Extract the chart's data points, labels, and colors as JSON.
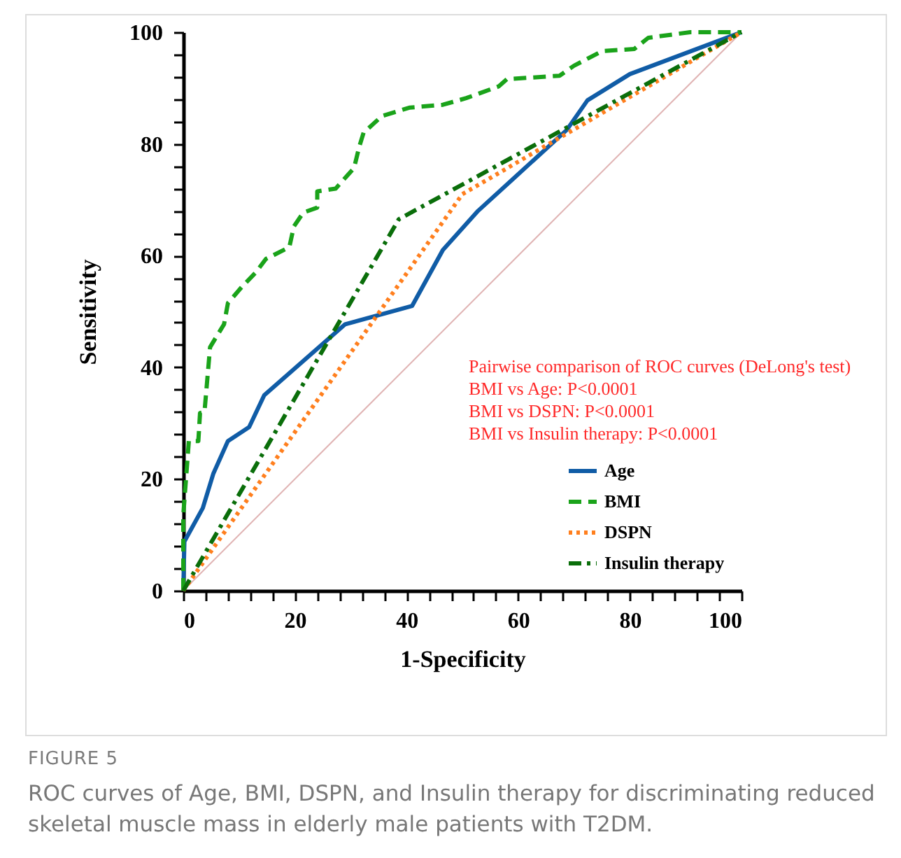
{
  "chart_data": {
    "type": "line",
    "xlabel": "1-Specificity",
    "ylabel": "Sensitivity",
    "xlim": [
      0,
      100
    ],
    "ylim": [
      0,
      100
    ],
    "xticks": [
      0,
      {
        "value": 4,
        "label": null
      },
      {
        "value": 8,
        "label": null
      },
      {
        "value": 12,
        "label": null
      },
      {
        "value": 16,
        "label": null
      },
      20,
      {
        "value": 24,
        "label": null
      },
      {
        "value": 28,
        "label": null
      },
      {
        "value": 32,
        "label": null
      },
      {
        "value": 36,
        "label": null
      },
      40,
      {
        "value": 44,
        "label": null
      },
      {
        "value": 48,
        "label": null
      },
      {
        "value": 52,
        "label": null
      },
      {
        "value": 56,
        "label": null
      },
      60,
      {
        "value": 64,
        "label": null
      },
      {
        "value": 68,
        "label": null
      },
      {
        "value": 72,
        "label": null
      },
      {
        "value": 76,
        "label": null
      },
      80,
      {
        "value": 84,
        "label": null
      },
      {
        "value": 88,
        "label": null
      },
      {
        "value": 92,
        "label": null
      },
      {
        "value": 96,
        "label": null
      },
      100
    ],
    "yticks": [
      0,
      {
        "value": 4,
        "label": null
      },
      {
        "value": 8,
        "label": null
      },
      {
        "value": 12,
        "label": null
      },
      {
        "value": 16,
        "label": null
      },
      20,
      {
        "value": 24,
        "label": null
      },
      {
        "value": 28,
        "label": null
      },
      {
        "value": 32,
        "label": null
      },
      {
        "value": 36,
        "label": null
      },
      40,
      {
        "value": 44,
        "label": null
      },
      {
        "value": 48,
        "label": null
      },
      {
        "value": 52,
        "label": null
      },
      {
        "value": 56,
        "label": null
      },
      60,
      {
        "value": 64,
        "label": null
      },
      {
        "value": 68,
        "label": null
      },
      {
        "value": 72,
        "label": null
      },
      {
        "value": 76,
        "label": null
      },
      80,
      {
        "value": 84,
        "label": null
      },
      {
        "value": 88,
        "label": null
      },
      {
        "value": 92,
        "label": null
      },
      {
        "value": 96,
        "label": null
      },
      100
    ],
    "grid": false,
    "legend": "bottom right",
    "marker": "none",
    "series": [
      {
        "name": "Age",
        "color": "#105ca6",
        "line_style": "solid",
        "x": [
          0,
          0.2,
          3.5,
          5.4,
          8,
          11.8,
          14.5,
          29,
          41,
          46.5,
          52.8,
          68.7,
          72.4,
          80,
          100
        ],
        "values": [
          0,
          8.8,
          14.8,
          21,
          26.8,
          29.3,
          35,
          47.7,
          51,
          61,
          68,
          82.5,
          87.8,
          92.5,
          100
        ]
      },
      {
        "name": "BMI",
        "color": "#1aa31a",
        "line_style": "dashed",
        "x": [
          0,
          0,
          1,
          2.7,
          3,
          3.8,
          4.8,
          7.3,
          8,
          10.5,
          13,
          14.8,
          19,
          19.8,
          21.5,
          24,
          24,
          27.3,
          30.6,
          31.5,
          32.3,
          35.6,
          40.6,
          46.5,
          50.7,
          56.5,
          58,
          67.4,
          70,
          75,
          80.8,
          83.3,
          90.8,
          100
        ],
        "values": [
          0,
          13.5,
          26.8,
          26.8,
          31.8,
          32,
          43.6,
          47.7,
          51.5,
          54.4,
          57,
          59.4,
          61.5,
          65.2,
          67.7,
          68.6,
          71.5,
          72,
          75.7,
          79.4,
          82,
          85,
          86.5,
          87,
          88.2,
          90.3,
          91.6,
          92.2,
          94,
          96.6,
          97,
          99,
          100,
          100
        ]
      },
      {
        "name": "DSPN",
        "color": "#ff7f1e",
        "line_style": "dotted",
        "x": [
          0,
          50,
          100
        ],
        "values": [
          0,
          71,
          100
        ]
      },
      {
        "name": "Insulin therapy",
        "color": "#0a6e0a",
        "line_style": "dashdot",
        "x": [
          0,
          38.6,
          100
        ],
        "values": [
          0,
          66.5,
          100
        ]
      },
      {
        "color": "#e0b4b4",
        "line_style": "solid",
        "x": [
          0,
          100
        ],
        "values": [
          0,
          100
        ]
      }
    ],
    "annotations": [
      "Pairwise comparison of ROC curves (DeLong's test)",
      "BMI vs Age: P<0.0001",
      "BMI vs DSPN: P<0.0001",
      "BMI vs Insulin therapy: P<0.0001",
      "FIGURE 5",
      "ROC curves of Age, BMI, DSPN, and Insulin therapy for discriminating reduced skeletal muscle mass in elderly male patients with T2DM."
    ]
  }
}
